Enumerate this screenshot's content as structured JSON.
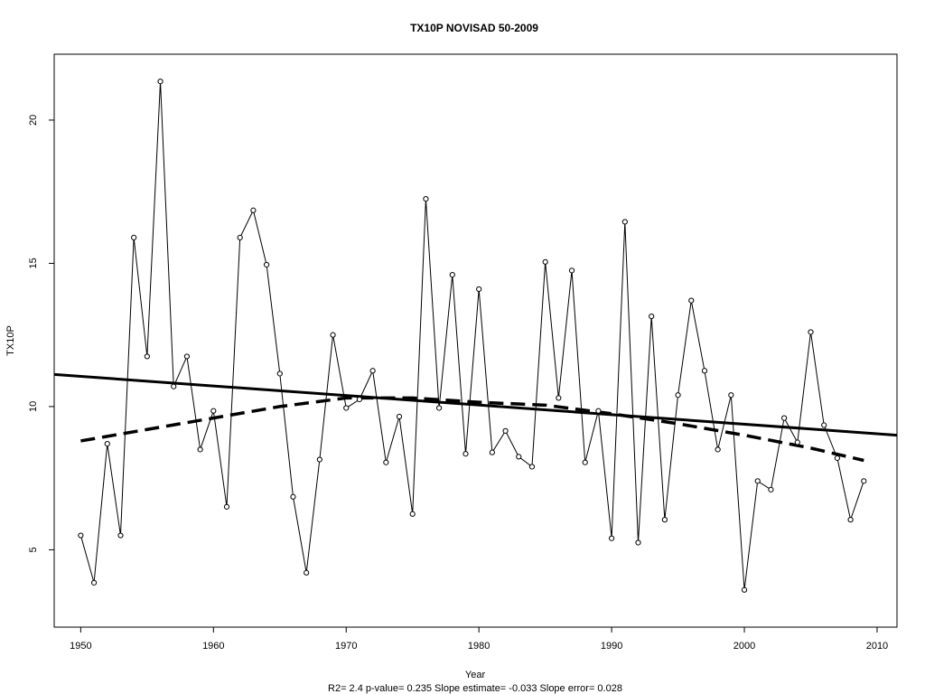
{
  "chart_data": {
    "type": "line",
    "title": "TX10P    NOVISAD 50-2009",
    "xlabel": "Year",
    "ylabel": "TX10P",
    "footnote": "R2= 2.4  p-value= 0.235  Slope estimate= -0.033  Slope error= 0.028",
    "xlim": [
      1948,
      2011.5
    ],
    "ylim": [
      2.3,
      22.3
    ],
    "x_ticks": [
      1950,
      1960,
      1970,
      1980,
      1990,
      2000,
      2010
    ],
    "y_ticks": [
      5,
      10,
      15,
      20
    ],
    "x": [
      1950,
      1951,
      1952,
      1953,
      1954,
      1955,
      1956,
      1957,
      1958,
      1959,
      1960,
      1961,
      1962,
      1963,
      1964,
      1965,
      1966,
      1967,
      1968,
      1969,
      1970,
      1971,
      1972,
      1973,
      1974,
      1975,
      1976,
      1977,
      1978,
      1979,
      1980,
      1981,
      1982,
      1983,
      1984,
      1985,
      1986,
      1987,
      1988,
      1989,
      1990,
      1991,
      1992,
      1993,
      1994,
      1995,
      1996,
      1997,
      1998,
      1999,
      2000,
      2001,
      2002,
      2003,
      2004,
      2005,
      2006,
      2007,
      2008,
      2009
    ],
    "series": [
      {
        "values": [
          5.5,
          3.85,
          8.7,
          5.5,
          15.9,
          11.75,
          21.35,
          10.7,
          11.75,
          8.5,
          9.85,
          6.5,
          15.9,
          16.85,
          14.95,
          11.15,
          6.85,
          4.2,
          8.15,
          12.5,
          9.95,
          10.25,
          11.25,
          8.05,
          9.65,
          6.25,
          17.25,
          9.95,
          14.6,
          8.35,
          14.1,
          8.4,
          9.15,
          8.25,
          7.9,
          15.05,
          10.3,
          14.75,
          8.05,
          9.85,
          5.4,
          16.45,
          5.25,
          13.15,
          6.05,
          10.4,
          13.7,
          11.25,
          8.5,
          10.4,
          3.6,
          7.4,
          7.1,
          9.6,
          8.75,
          12.6,
          9.35,
          8.2,
          6.05,
          7.4
        ]
      }
    ],
    "trend_line": {
      "style": "solid",
      "x": [
        1948,
        2011.5
      ],
      "y": [
        11.12,
        9.0
      ]
    },
    "smooth_line": {
      "style": "dashed",
      "x": [
        1950,
        1955,
        1960,
        1965,
        1970,
        1975,
        1980,
        1985,
        1990,
        1995,
        2000,
        2005,
        2009
      ],
      "y": [
        8.8,
        9.2,
        9.6,
        10.0,
        10.3,
        10.3,
        10.15,
        10.05,
        9.75,
        9.4,
        9.0,
        8.55,
        8.12
      ]
    },
    "grid": false,
    "legend": "none"
  }
}
